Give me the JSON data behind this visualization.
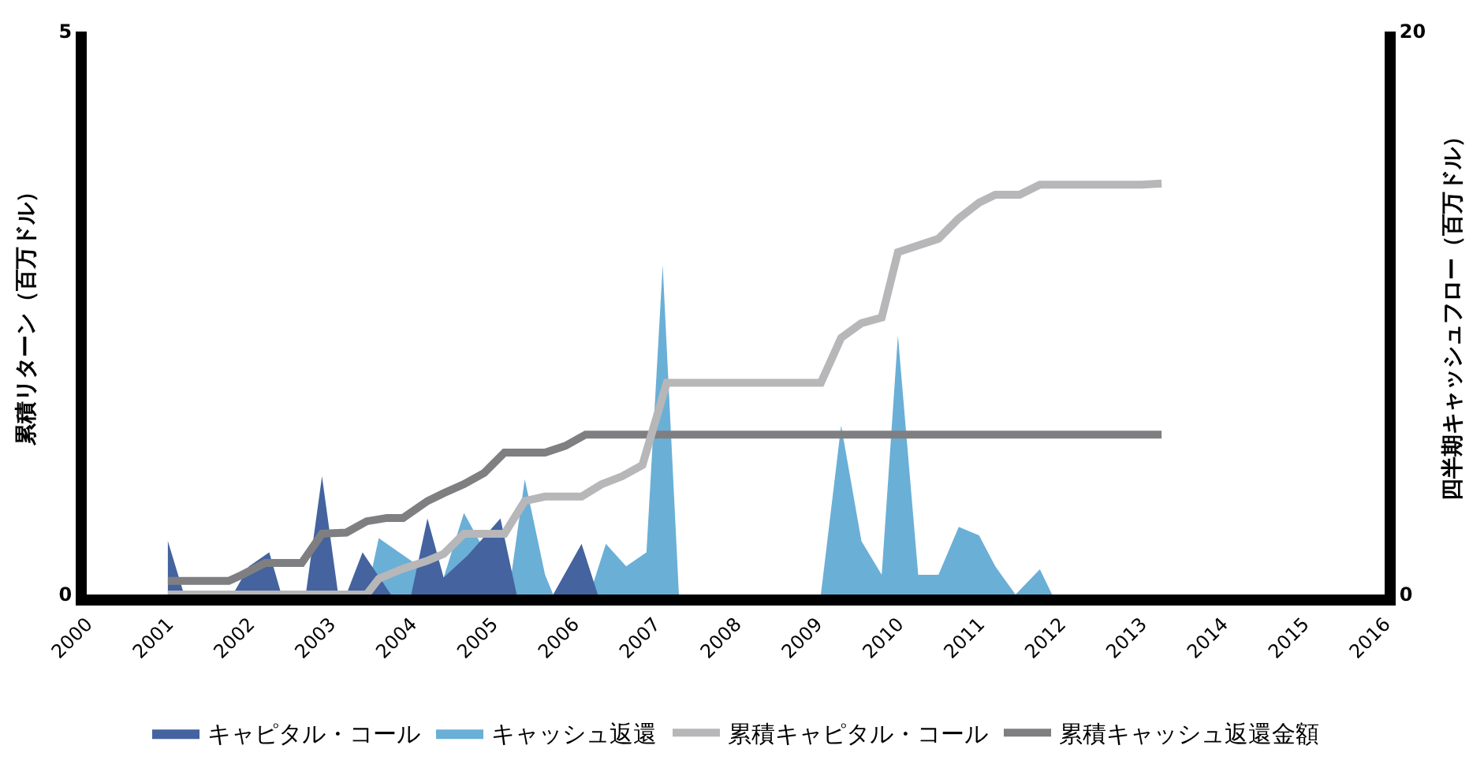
{
  "chart_data": {
    "type": "area",
    "ylabel": "累積リターン（百万ドル）",
    "y2label": "四半期キャッシュフロー（百万ドル）",
    "xlim": [
      2000,
      2016
    ],
    "xticks": [
      2000,
      2001,
      2002,
      2003,
      2004,
      2005,
      2006,
      2007,
      2008,
      2009,
      2010,
      2011,
      2012,
      2013,
      2014,
      2015,
      2016
    ],
    "ylim": [
      0,
      5
    ],
    "yticks": [
      0,
      5
    ],
    "y2lim": [
      0,
      20
    ],
    "y2ticks": [
      0,
      20
    ],
    "legend": "bottom",
    "series": [
      {
        "name": "キャピタル・コール",
        "axis": "y2",
        "color": "#44639f",
        "x": [
          2001.0,
          2001.2,
          2001.8,
          2002.0,
          2002.25,
          2002.4,
          2002.7,
          2002.9,
          2003.1,
          2003.2,
          2003.4,
          2003.75,
          2004.0,
          2004.2,
          2004.4,
          2004.7,
          2005.1,
          2005.3,
          2005.75,
          2006.1,
          2006.3
        ],
        "values": [
          1.9,
          0,
          0,
          1.0,
          1.5,
          0,
          0,
          4.2,
          0,
          0,
          1.5,
          0,
          0,
          2.7,
          0.6,
          1.4,
          2.7,
          0,
          0,
          1.8,
          0
        ]
      },
      {
        "name": "キャッシュ返還",
        "axis": "y2",
        "color": "#6aafd6",
        "x": [
          2003.45,
          2003.6,
          2004.0,
          2004.4,
          2004.65,
          2004.9,
          2005.2,
          2005.4,
          2005.65,
          2005.75,
          2006.2,
          2006.4,
          2006.65,
          2006.9,
          2007.1,
          2007.3,
          2009.05,
          2009.3,
          2009.55,
          2009.8,
          2010.0,
          2010.25,
          2010.5,
          2010.75,
          2011.0,
          2011.2,
          2011.45,
          2011.75,
          2011.9
        ],
        "values": [
          0,
          2.0,
          1.2,
          0.6,
          2.9,
          null,
          0,
          4.1,
          0.7,
          0,
          0,
          1.8,
          1.0,
          1.5,
          11.7,
          0,
          0,
          6.0,
          1.9,
          0.7,
          9.2,
          0.7,
          0.7,
          2.4,
          2.1,
          1.0,
          0,
          0.9,
          0
        ]
      },
      {
        "name": "累積キャピタル・コール",
        "type": "line",
        "color": "#b7b7b9",
        "x": [
          2001.0,
          2003.45,
          2003.6,
          2003.9,
          2004.2,
          2004.4,
          2004.65,
          2005.15,
          2005.4,
          2005.65,
          2006.1,
          2006.35,
          2006.6,
          2006.85,
          2007.15,
          2009.05,
          2009.3,
          2009.55,
          2009.8,
          2010.0,
          2010.5,
          2010.75,
          2011.0,
          2011.2,
          2011.5,
          2011.75,
          2013.0,
          2013.25
        ],
        "values": [
          0,
          0,
          0.14,
          0.23,
          0.3,
          0.36,
          0.54,
          0.54,
          0.83,
          0.87,
          0.87,
          0.98,
          1.05,
          1.15,
          1.88,
          1.88,
          2.28,
          2.41,
          2.46,
          3.04,
          3.16,
          3.34,
          3.48,
          3.55,
          3.55,
          3.64,
          3.64,
          3.65
        ]
      },
      {
        "name": "累積キャッシュ返還金額",
        "type": "line",
        "color": "#7f7f82",
        "x": [
          2001.0,
          2001.75,
          2001.9,
          2002.2,
          2002.65,
          2002.9,
          2003.2,
          2003.45,
          2003.7,
          2003.9,
          2004.2,
          2004.4,
          2004.65,
          2004.9,
          2005.15,
          2005.65,
          2005.9,
          2006.15,
          2013.25
        ],
        "values": [
          0.12,
          0.12,
          0.17,
          0.28,
          0.28,
          0.54,
          0.55,
          0.65,
          0.68,
          0.68,
          0.83,
          0.9,
          0.98,
          1.08,
          1.26,
          1.26,
          1.32,
          1.42,
          1.42
        ]
      }
    ]
  }
}
